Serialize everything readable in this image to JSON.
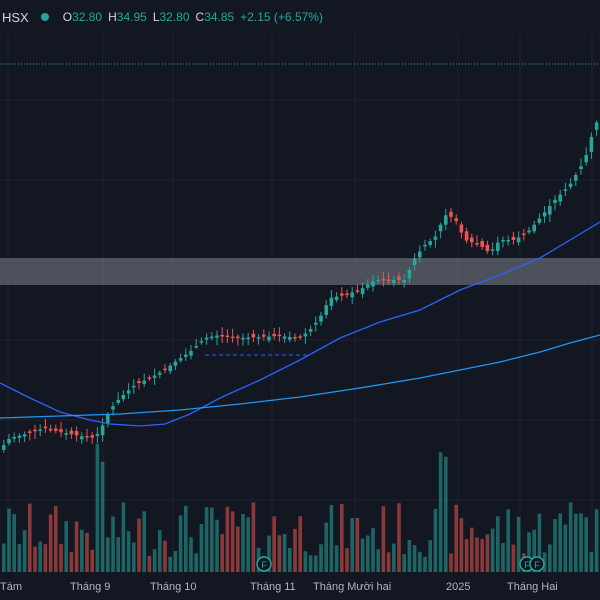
{
  "header": {
    "symbol": "HSX",
    "open_label": "O",
    "open": "32.80",
    "high_label": "H",
    "high": "34.95",
    "low_label": "L",
    "low": "32.80",
    "close_label": "C",
    "close": "34.85",
    "change": "+2.15 (+6.57%)"
  },
  "x_axis": {
    "labels": [
      "Tám",
      "Tháng 9",
      "Tháng 10",
      "Tháng 11",
      "Tháng Mười hai",
      "2025",
      "Tháng Hai"
    ]
  },
  "events": {
    "marker_letter": "F"
  },
  "colors": {
    "background": "#131722",
    "up": "#26a69a",
    "down": "#ef5350",
    "ma_short": "#2962ff",
    "ma_long": "#2196f3",
    "zone": "#9598a1"
  },
  "chart_data": {
    "type": "candlestick",
    "series": [
      {
        "name": "",
        "values": []
      }
    ]
  }
}
